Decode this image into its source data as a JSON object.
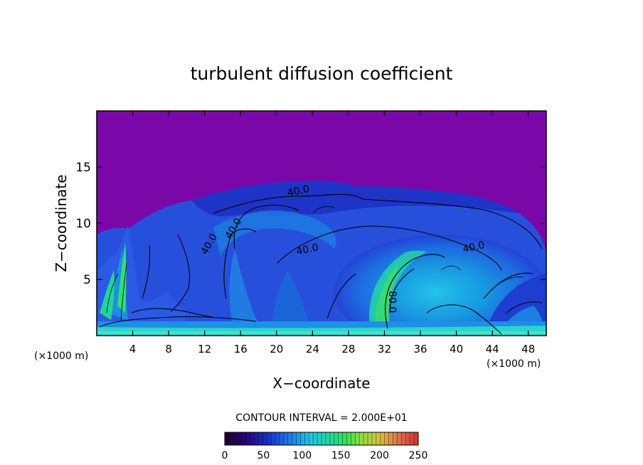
{
  "chart_data": {
    "type": "heatmap",
    "title": "turbulent diffusion coefficient",
    "xlabel": "X−coordinate",
    "ylabel": "Z−coordinate",
    "x_unit_left": "(×1000 m)",
    "x_unit_right": "(×1000 m)",
    "xlim": [
      0,
      50
    ],
    "ylim": [
      0,
      20
    ],
    "xticks": [
      4,
      8,
      12,
      16,
      20,
      24,
      28,
      32,
      36,
      40,
      44,
      48
    ],
    "yticks": [
      5,
      10,
      15
    ],
    "contour_interval_text": "CONTOUR INTERVAL = 2.000E+01",
    "contour_labels": [
      {
        "text": "40.0",
        "x": 22.5,
        "z": 12.6
      },
      {
        "text": "40.0",
        "x": 15.5,
        "z": 9.4
      },
      {
        "text": "40.0",
        "x": 12.8,
        "z": 8.0
      },
      {
        "text": "40.0",
        "x": 23.5,
        "z": 7.4
      },
      {
        "text": "40.0",
        "x": 42.0,
        "z": 7.6
      },
      {
        "text": "80.0",
        "x": 32.5,
        "z": 3.0
      }
    ],
    "colorbar": {
      "min": 0,
      "max": 250,
      "ticks": [
        0,
        50,
        100,
        150,
        200,
        250
      ]
    },
    "grid": false,
    "legend": "none"
  }
}
